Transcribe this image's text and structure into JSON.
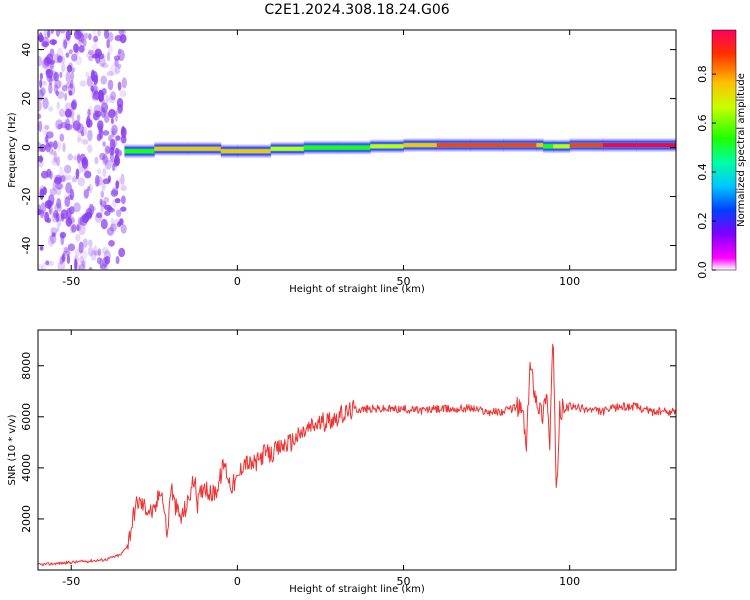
{
  "title": "C2E1.2024.308.18.24.G06",
  "colors": {
    "snr_line": "#ee3333",
    "spectrum_noise": "#8a3df0",
    "colorbar": [
      "#ff00ff",
      "#7a00ff",
      "#0040ff",
      "#00c0ff",
      "#00ffa0",
      "#20ff00",
      "#c0ff00",
      "#ffc000",
      "#ff4000",
      "#ff0040"
    ]
  },
  "chart_data": [
    {
      "type": "heatmap",
      "title": "",
      "xlabel": "Height of straight line (km)",
      "ylabel": "Frequency (Hz)",
      "xlim": [
        -60,
        132
      ],
      "ylim": [
        -50,
        48
      ],
      "xticks": [
        "-50",
        "0",
        "50",
        "100"
      ],
      "yticks": [
        "-40",
        "-20",
        "0",
        "20",
        "40"
      ],
      "colorbar": {
        "label": "Normalized spectral amplitude",
        "range": [
          0,
          0.98
        ],
        "ticks": [
          "0.0",
          "0.2",
          "0.4",
          "0.6",
          "0.8"
        ]
      },
      "noise_region_km": [
        -60,
        -34
      ],
      "signal_band": {
        "x": [
          -34,
          -25,
          -15,
          -5,
          0,
          10,
          20,
          30,
          40,
          50,
          60,
          70,
          80,
          90,
          92,
          95,
          100,
          110,
          120,
          132
        ],
        "center_hz": [
          -2,
          -1,
          0,
          -1,
          -2,
          -1,
          0,
          0,
          0,
          1,
          1,
          1,
          1,
          1,
          1,
          0,
          1,
          1,
          1,
          1
        ],
        "peak_amplitude": [
          0.3,
          0.7,
          0.75,
          0.75,
          0.8,
          0.85,
          0.55,
          0.55,
          0.6,
          0.75,
          0.85,
          0.9,
          0.9,
          0.95,
          0.6,
          0.5,
          0.9,
          0.95,
          0.95,
          0.95
        ]
      }
    },
    {
      "type": "line",
      "title": "",
      "xlabel": "Height of straight line (km)",
      "ylabel": "SNR (10 * v/v)",
      "xlim": [
        -60,
        132
      ],
      "ylim": [
        0,
        9400
      ],
      "xticks": [
        "-50",
        "0",
        "50",
        "100"
      ],
      "yticks": [
        "2000",
        "4000",
        "6000",
        "8000"
      ],
      "series": [
        {
          "x": [
            -60,
            -50,
            -40,
            -35,
            -33,
            -31,
            -30,
            -28,
            -25,
            -23,
            -21,
            -20,
            -19,
            -17,
            -15,
            -13,
            -12,
            -10,
            -8,
            -6,
            -4,
            -2,
            0,
            2,
            4,
            6,
            8,
            10,
            12,
            14,
            16,
            18,
            20,
            22,
            24,
            26,
            28,
            30,
            32,
            35,
            40,
            45,
            50,
            55,
            60,
            65,
            70,
            75,
            80,
            84,
            86,
            87,
            88,
            90,
            92,
            93,
            94,
            95,
            96,
            97,
            98,
            100,
            105,
            110,
            115,
            120,
            125,
            132
          ],
          "y": [
            200,
            300,
            400,
            600,
            1000,
            2300,
            2700,
            2500,
            2200,
            3300,
            1300,
            3400,
            2600,
            2000,
            2600,
            3600,
            2600,
            3400,
            2900,
            3200,
            4200,
            3300,
            3500,
            4300,
            4100,
            4200,
            4600,
            4500,
            4700,
            4900,
            5000,
            5200,
            5400,
            5600,
            5700,
            5800,
            5900,
            6000,
            6100,
            6300,
            6300,
            6300,
            6300,
            6250,
            6300,
            6300,
            6350,
            6200,
            6200,
            6400,
            6200,
            4600,
            8100,
            6700,
            6000,
            7200,
            4900,
            9300,
            2600,
            6200,
            6300,
            6400,
            6300,
            6200,
            6400,
            6400,
            6200,
            6200
          ]
        }
      ]
    }
  ]
}
